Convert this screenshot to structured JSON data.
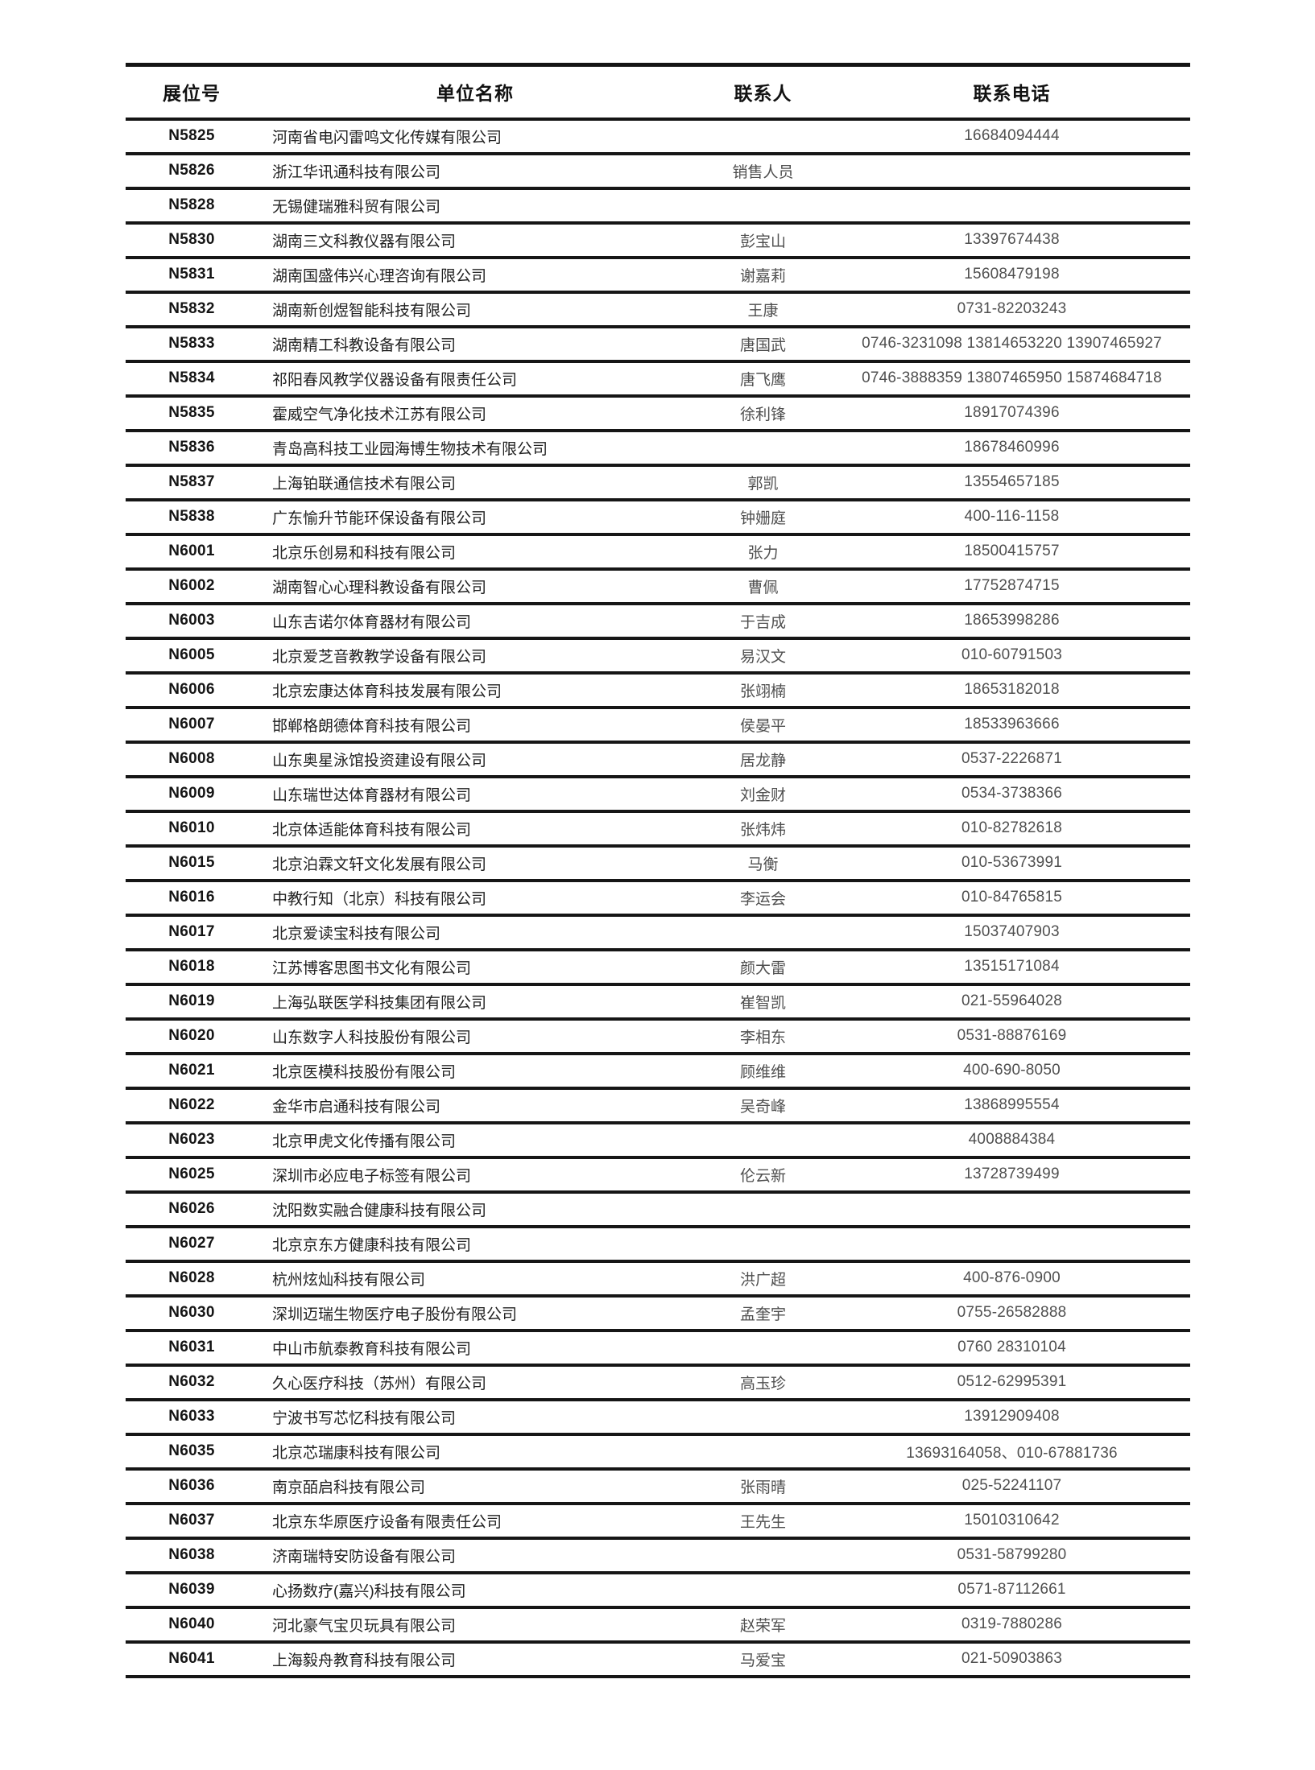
{
  "table": {
    "columns": [
      "展位号",
      "单位名称",
      "联系人",
      "联系电话"
    ],
    "rows": [
      {
        "booth": "N5825",
        "company": "河南省电闪雷鸣文化传媒有限公司",
        "contact": "",
        "phone": "16684094444"
      },
      {
        "booth": "N5826",
        "company": "浙江华讯通科技有限公司",
        "contact": "销售人员",
        "phone": ""
      },
      {
        "booth": "N5828",
        "company": "无锡健瑞雅科贸有限公司",
        "contact": "",
        "phone": ""
      },
      {
        "booth": "N5830",
        "company": "湖南三文科教仪器有限公司",
        "contact": "彭宝山",
        "phone": "13397674438"
      },
      {
        "booth": "N5831",
        "company": "湖南国盛伟兴心理咨询有限公司",
        "contact": "谢嘉莉",
        "phone": "15608479198"
      },
      {
        "booth": "N5832",
        "company": "湖南新创煜智能科技有限公司",
        "contact": "王康",
        "phone": "0731-82203243"
      },
      {
        "booth": "N5833",
        "company": "湖南精工科教设备有限公司",
        "contact": "唐国武",
        "phone": "0746-3231098 13814653220 13907465927"
      },
      {
        "booth": "N5834",
        "company": "祁阳春风教学仪器设备有限责任公司",
        "contact": "唐飞鹰",
        "phone": "0746-3888359 13807465950 15874684718"
      },
      {
        "booth": "N5835",
        "company": "霍威空气净化技术江苏有限公司",
        "contact": "徐利锋",
        "phone": "18917074396"
      },
      {
        "booth": "N5836",
        "company": "青岛高科技工业园海博生物技术有限公司",
        "contact": "",
        "phone": "18678460996"
      },
      {
        "booth": "N5837",
        "company": "上海铂联通信技术有限公司",
        "contact": "郭凯",
        "phone": "13554657185"
      },
      {
        "booth": "N5838",
        "company": "广东愉升节能环保设备有限公司",
        "contact": "钟姗庭",
        "phone": "400-116-1158"
      },
      {
        "booth": "N6001",
        "company": "北京乐创易和科技有限公司",
        "contact": "张力",
        "phone": "18500415757"
      },
      {
        "booth": "N6002",
        "company": "湖南智心心理科教设备有限公司",
        "contact": "曹佩",
        "phone": "17752874715"
      },
      {
        "booth": "N6003",
        "company": "山东吉诺尔体育器材有限公司",
        "contact": "于吉成",
        "phone": "18653998286"
      },
      {
        "booth": "N6005",
        "company": "北京爱芝音教教学设备有限公司",
        "contact": "易汉文",
        "phone": "010-60791503"
      },
      {
        "booth": "N6006",
        "company": "北京宏康达体育科技发展有限公司",
        "contact": "张翊楠",
        "phone": "18653182018"
      },
      {
        "booth": "N6007",
        "company": "邯郸格朗德体育科技有限公司",
        "contact": "侯晏平",
        "phone": "18533963666"
      },
      {
        "booth": "N6008",
        "company": "山东奥星泳馆投资建设有限公司",
        "contact": "居龙静",
        "phone": "0537-2226871"
      },
      {
        "booth": "N6009",
        "company": "山东瑞世达体育器材有限公司",
        "contact": "刘金财",
        "phone": "0534-3738366"
      },
      {
        "booth": "N6010",
        "company": "北京体适能体育科技有限公司",
        "contact": "张炜炜",
        "phone": "010-82782618"
      },
      {
        "booth": "N6015",
        "company": "北京泊霖文轩文化发展有限公司",
        "contact": "马衡",
        "phone": "010-53673991"
      },
      {
        "booth": "N6016",
        "company": "中教行知（北京）科技有限公司",
        "contact": "李运会",
        "phone": "010-84765815"
      },
      {
        "booth": "N6017",
        "company": "北京爱读宝科技有限公司",
        "contact": "",
        "phone": "15037407903"
      },
      {
        "booth": "N6018",
        "company": "江苏博客思图书文化有限公司",
        "contact": "颜大雷",
        "phone": "13515171084"
      },
      {
        "booth": "N6019",
        "company": "上海弘联医学科技集团有限公司",
        "contact": "崔智凯",
        "phone": "021-55964028"
      },
      {
        "booth": "N6020",
        "company": "山东数字人科技股份有限公司",
        "contact": "李相东",
        "phone": "0531-88876169"
      },
      {
        "booth": "N6021",
        "company": "北京医模科技股份有限公司",
        "contact": "顾维维",
        "phone": "400-690-8050"
      },
      {
        "booth": "N6022",
        "company": "金华市启通科技有限公司",
        "contact": "吴奇峰",
        "phone": "13868995554"
      },
      {
        "booth": "N6023",
        "company": "北京甲虎文化传播有限公司",
        "contact": "",
        "phone": "4008884384"
      },
      {
        "booth": "N6025",
        "company": "深圳市必应电子标签有限公司",
        "contact": "伦云新",
        "phone": "13728739499"
      },
      {
        "booth": "N6026",
        "company": "沈阳数实融合健康科技有限公司",
        "contact": "",
        "phone": ""
      },
      {
        "booth": "N6027",
        "company": "北京京东方健康科技有限公司",
        "contact": "",
        "phone": ""
      },
      {
        "booth": "N6028",
        "company": "杭州炫灿科技有限公司",
        "contact": "洪广超",
        "phone": "400-876-0900"
      },
      {
        "booth": "N6030",
        "company": "深圳迈瑞生物医疗电子股份有限公司",
        "contact": "孟奎宇",
        "phone": "0755-26582888"
      },
      {
        "booth": "N6031",
        "company": "中山市航泰教育科技有限公司",
        "contact": "",
        "phone": "0760 28310104"
      },
      {
        "booth": "N6032",
        "company": "久心医疗科技（苏州）有限公司",
        "contact": "高玉珍",
        "phone": "0512-62995391"
      },
      {
        "booth": "N6033",
        "company": "宁波书写芯忆科技有限公司",
        "contact": "",
        "phone": "13912909408"
      },
      {
        "booth": "N6035",
        "company": "北京芯瑞康科技有限公司",
        "contact": "",
        "phone": "13693164058、010-67881736"
      },
      {
        "booth": "N6036",
        "company": "南京皕启科技有限公司",
        "contact": "张雨晴",
        "phone": "025-52241107"
      },
      {
        "booth": "N6037",
        "company": "北京东华原医疗设备有限责任公司",
        "contact": "王先生",
        "phone": "15010310642"
      },
      {
        "booth": "N6038",
        "company": "济南瑞特安防设备有限公司",
        "contact": "",
        "phone": "0531-58799280"
      },
      {
        "booth": "N6039",
        "company": "心扬数疗(嘉兴)科技有限公司",
        "contact": "",
        "phone": "0571-87112661"
      },
      {
        "booth": "N6040",
        "company": "河北豪气宝贝玩具有限公司",
        "contact": "赵荣军",
        "phone": "0319-7880286"
      },
      {
        "booth": "N6041",
        "company": "上海毅舟教育科技有限公司",
        "contact": "马爱宝",
        "phone": "021-50903863"
      }
    ]
  }
}
